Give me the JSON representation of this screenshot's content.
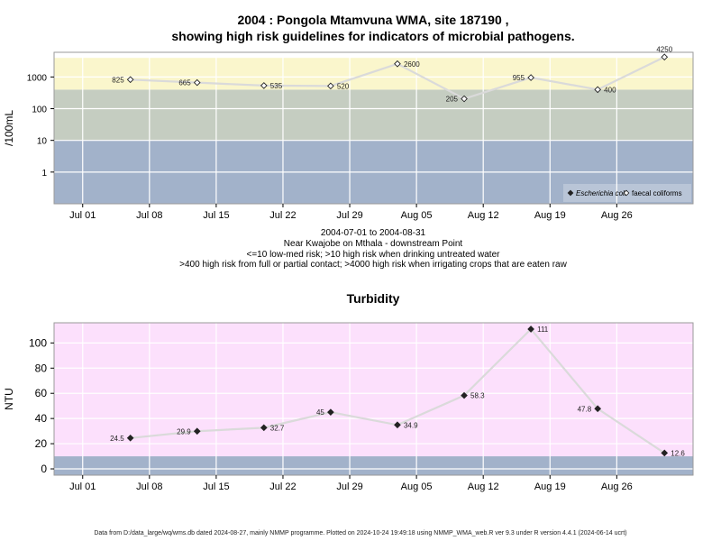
{
  "chart_data": [
    {
      "type": "line",
      "title": "2004 : Pongola Mtamvuna WMA, site 187190 ,",
      "subtitle": "showing high risk guidelines for indicators of microbial pathogens.",
      "ylabel": "/100mL",
      "yscale": "log10",
      "ylim": [
        0.1,
        6000
      ],
      "xlim": [
        "2004-06-28",
        "2004-09-03"
      ],
      "x_ticks": [
        {
          "date": "2004-07-01",
          "label": "Jul 01"
        },
        {
          "date": "2004-07-08",
          "label": "Jul 08"
        },
        {
          "date": "2004-07-15",
          "label": "Jul 15"
        },
        {
          "date": "2004-07-22",
          "label": "Jul 22"
        },
        {
          "date": "2004-07-29",
          "label": "Jul 29"
        },
        {
          "date": "2004-08-05",
          "label": "Aug 05"
        },
        {
          "date": "2004-08-12",
          "label": "Aug 12"
        },
        {
          "date": "2004-08-19",
          "label": "Aug 19"
        },
        {
          "date": "2004-08-26",
          "label": "Aug 26"
        }
      ],
      "y_ticks": [
        {
          "value": 1,
          "label": "1"
        },
        {
          "value": 10,
          "label": "10"
        },
        {
          "value": 100,
          "label": "100"
        },
        {
          "value": 1000,
          "label": "1000"
        }
      ],
      "bands": [
        {
          "from": 0.1,
          "to": 10,
          "color": "#a2b2ca"
        },
        {
          "from": 10,
          "to": 400,
          "color": "#c5cdc1"
        },
        {
          "from": 400,
          "to": 4000,
          "color": "#faf6cc"
        }
      ],
      "grid": true,
      "legend": {
        "position": "bottom-right",
        "entries": [
          {
            "label": "Escherichia coli",
            "marker": "filled-diamond"
          },
          {
            "label": "faecal coliforms",
            "marker": "open-diamond"
          }
        ]
      },
      "series": [
        {
          "name": "faecal coliforms",
          "marker": "open-diamond",
          "line_color": "#dadada",
          "points": [
            {
              "x": "2004-07-06",
              "y": 825,
              "label": "825",
              "label_side": "left"
            },
            {
              "x": "2004-07-13",
              "y": 665,
              "label": "665",
              "label_side": "left"
            },
            {
              "x": "2004-07-20",
              "y": 535,
              "label": "535",
              "label_side": "right"
            },
            {
              "x": "2004-07-27",
              "y": 520,
              "label": "520",
              "label_side": "right"
            },
            {
              "x": "2004-08-03",
              "y": 2600,
              "label": "2600",
              "label_side": "right"
            },
            {
              "x": "2004-08-10",
              "y": 205,
              "label": "205",
              "label_side": "left"
            },
            {
              "x": "2004-08-17",
              "y": 955,
              "label": "955",
              "label_side": "left"
            },
            {
              "x": "2004-08-24",
              "y": 400,
              "label": "400",
              "label_side": "right"
            },
            {
              "x": "2004-08-31",
              "y": 4250,
              "label": "4250",
              "label_side": "above"
            }
          ]
        }
      ]
    },
    {
      "type": "line",
      "title": "Turbidity",
      "ylabel": "NTU",
      "ylim": [
        -5,
        116
      ],
      "xlim": [
        "2004-06-28",
        "2004-09-03"
      ],
      "x_ticks": [
        {
          "date": "2004-07-01",
          "label": "Jul 01"
        },
        {
          "date": "2004-07-08",
          "label": "Jul 08"
        },
        {
          "date": "2004-07-15",
          "label": "Jul 15"
        },
        {
          "date": "2004-07-22",
          "label": "Jul 22"
        },
        {
          "date": "2004-07-29",
          "label": "Jul 29"
        },
        {
          "date": "2004-08-05",
          "label": "Aug 05"
        },
        {
          "date": "2004-08-12",
          "label": "Aug 12"
        },
        {
          "date": "2004-08-19",
          "label": "Aug 19"
        },
        {
          "date": "2004-08-26",
          "label": "Aug 26"
        }
      ],
      "y_ticks": [
        {
          "value": 0,
          "label": "0"
        },
        {
          "value": 20,
          "label": "20"
        },
        {
          "value": 40,
          "label": "40"
        },
        {
          "value": 60,
          "label": "60"
        },
        {
          "value": 80,
          "label": "80"
        },
        {
          "value": 100,
          "label": "100"
        }
      ],
      "bands": [
        {
          "from": -5,
          "to": 10,
          "color": "#a2b2ca"
        },
        {
          "from": 10,
          "to": 116,
          "color": "#fce0fc"
        }
      ],
      "grid": true,
      "series": [
        {
          "marker": "filled-diamond",
          "line_color": "#dadada",
          "points": [
            {
              "x": "2004-07-06",
              "y": 24.5,
              "label": "24.5",
              "label_side": "left"
            },
            {
              "x": "2004-07-13",
              "y": 29.9,
              "label": "29.9",
              "label_side": "left"
            },
            {
              "x": "2004-07-20",
              "y": 32.7,
              "label": "32.7",
              "label_side": "right"
            },
            {
              "x": "2004-07-27",
              "y": 45,
              "label": "45",
              "label_side": "left"
            },
            {
              "x": "2004-08-03",
              "y": 34.9,
              "label": "34.9",
              "label_side": "right"
            },
            {
              "x": "2004-08-10",
              "y": 58.3,
              "label": "58.3",
              "label_side": "right"
            },
            {
              "x": "2004-08-17",
              "y": 111,
              "label": "111",
              "label_side": "right"
            },
            {
              "x": "2004-08-24",
              "y": 47.8,
              "label": "47.8",
              "label_side": "left"
            },
            {
              "x": "2004-08-31",
              "y": 12.6,
              "label": "12.6",
              "label_side": "right"
            }
          ]
        }
      ]
    }
  ],
  "captions": {
    "date_range": "2004-07-01 to 2004-08-31",
    "location": "Near Kwajobe on Mthala - downstream Point",
    "risk_line1": "<=10 low-med risk; >10 high risk when drinking untreated water",
    "risk_line2": ">400 high risk from full or partial contact; >4000 high risk when irrigating crops that are eaten raw"
  },
  "footer": "Data from D:/data_large/wq/wms.db dated 2024-08-27, mainly NMMP programme. Plotted on 2024-10-24 19:49:18 using NMMP_WMA_web.R ver 9.3 under R version 4.4.1 (2024-06-14 ucrt)"
}
